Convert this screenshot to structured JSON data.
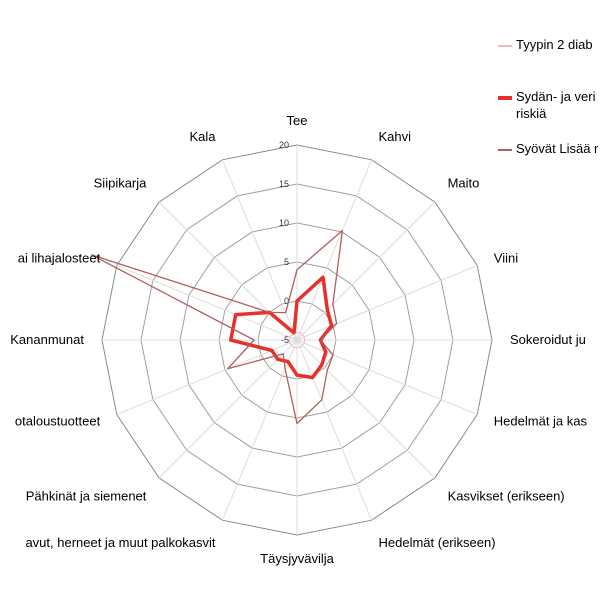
{
  "chart_data": {
    "type": "radar",
    "categories": [
      "Tee",
      "Kahvi",
      "Maito",
      "Viini",
      "Sokeroidut ju",
      "Hedelmät ja kas",
      "Kasvikset (erikseen)",
      "Hedelmät (erikseen)",
      "Täysjyväviljа",
      "avut, herneet ja muut palkokasvit",
      "Pähkinät ja siemenet",
      "otaloustuotteet",
      "Kananmunat",
      "ai lihajalosteet",
      "Siipikarja",
      "Kala"
    ],
    "r_ticks": [
      "-5",
      "0",
      "5",
      "10",
      "15",
      "20"
    ],
    "r_range": [
      -5,
      20
    ],
    "grid": true,
    "legend_position": "top-right",
    "series": [
      {
        "name": "Tyypin 2 diab",
        "color": "#f4b8bd",
        "values": [
          -4,
          -4,
          -4,
          -4,
          -4,
          -4,
          -4,
          -4,
          -4,
          -4,
          -4,
          -4,
          -4,
          -4,
          -4,
          -4
        ]
      },
      {
        "name": "Sydän- ja veri riskiä",
        "color": "#e8302a",
        "values": [
          0,
          3.7,
          0.5,
          -0.2,
          -2,
          -1,
          -0.5,
          0.2,
          -0.5,
          -2,
          -1.5,
          -1.5,
          3.5,
          3.5,
          0,
          -4
        ]
      },
      {
        "name": "Syövät Lisää r",
        "color": "#b05e5e",
        "values": [
          4,
          10.2,
          1.5,
          0.5,
          -2,
          0,
          0.5,
          3.3,
          5.7,
          -1,
          -2.5,
          4.6,
          0.5,
          23.5,
          0,
          -1.2
        ]
      }
    ]
  },
  "legend": {
    "item1": "Tyypin 2 diab",
    "item2_line1": "Sydän- ja veri",
    "item2_line2": "riskiä",
    "item3": "Syövät Lisää r"
  }
}
